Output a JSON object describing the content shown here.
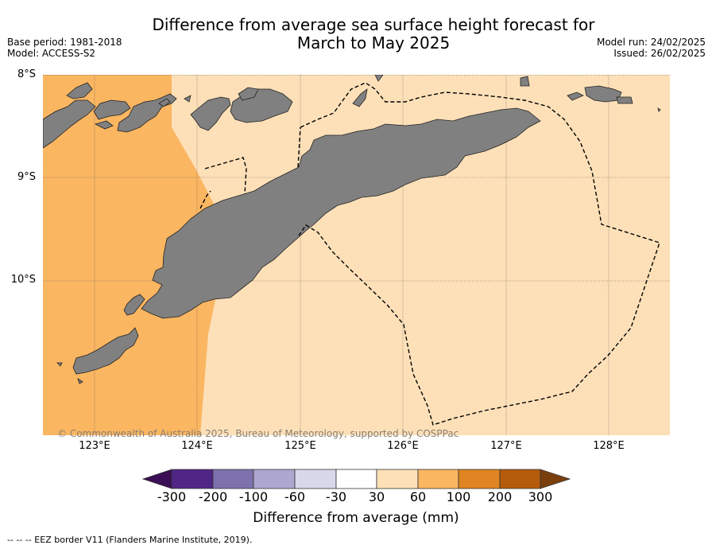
{
  "title_line1": "Difference from average sea surface height forecast for",
  "title_line2": "March to May 2025",
  "meta_left": [
    "Base period: 1981-2018",
    "Model: ACCESS-S2"
  ],
  "meta_right": [
    "Model run: 24/02/2025",
    "Issued: 26/02/2025"
  ],
  "lat_labels": [
    "8°S",
    "9°S",
    "10°S"
  ],
  "lon_labels": [
    "123°E",
    "124°E",
    "125°E",
    "126°E",
    "127°E",
    "128°E"
  ],
  "copyright": "© Commonwealth of Australia 2025, Bureau of Meteorology, supported by COSPPac",
  "legend": {
    "title": "Difference from average (mm)",
    "tick_labels": [
      "-300",
      "-200",
      "-100",
      "-60",
      "-30",
      "30",
      "60",
      "100",
      "200",
      "300"
    ],
    "colors": [
      "#3a0f55",
      "#4f2585",
      "#7e72ae",
      "#aea7cf",
      "#d8d8ea",
      "#ffffff",
      "#fde0b8",
      "#fbb661",
      "#e08521",
      "#b45c0b",
      "#7a3f0c"
    ]
  },
  "map_colors": {
    "land": "#808080",
    "anomaly_30_60": "#fde0b8",
    "anomaly_60_100": "#fbb661"
  },
  "footer": "--  --  -- EEZ border V11 (Flanders Marine Institute, 2019)."
}
